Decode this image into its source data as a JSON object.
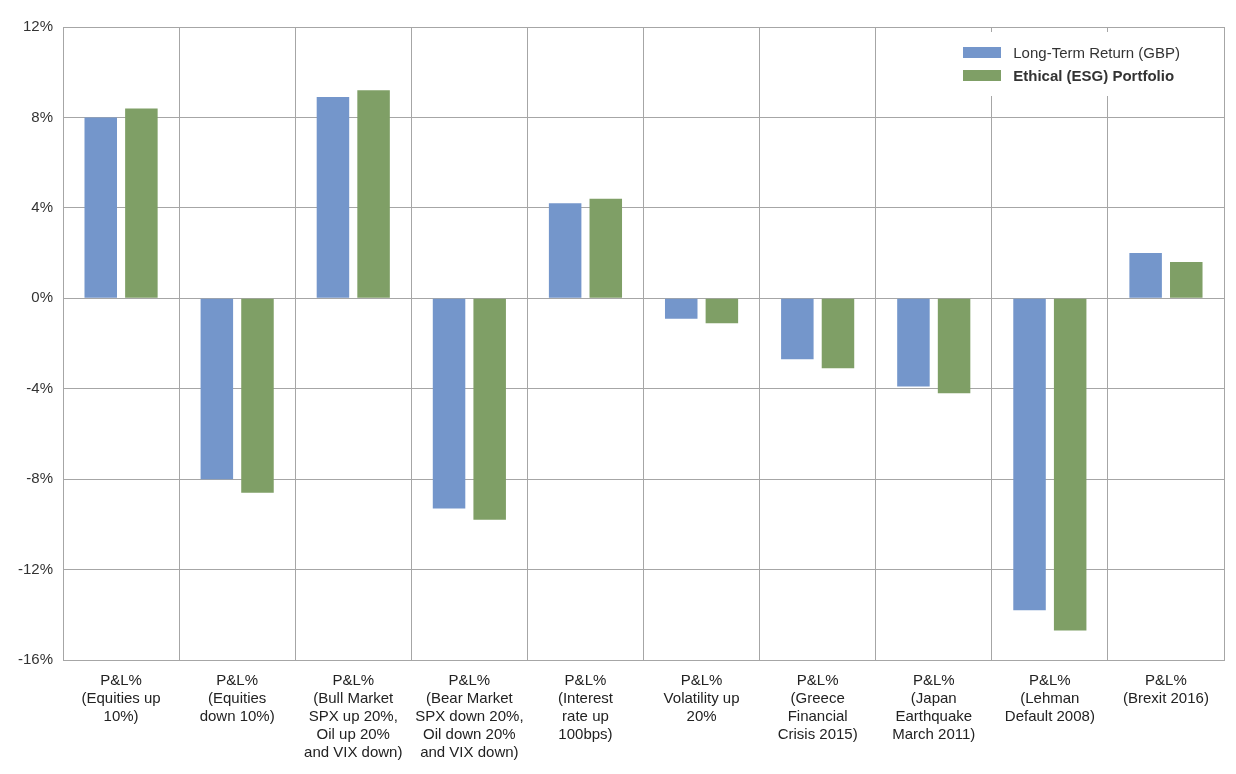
{
  "chart_data": {
    "type": "bar",
    "categories": [
      "P&L% (Equities up 10%)",
      "P&L% (Equities down 10%)",
      "P&L% (Bull Market SPX up 20%, Oil up 20% and VIX down)",
      "P&L% (Bear Market SPX down 20%, Oil down 20% and VIX down)",
      "P&L% (Interest rate up 100bps)",
      "P&L% Volatility up 20%",
      "P&L% (Greece Financial Crisis 2015)",
      "P&L% (Japan Earthquake March 2011)",
      "P&L% (Lehman Default 2008)",
      "P&L% (Brexit 2016)"
    ],
    "series": [
      {
        "name": "Long-Term Return (GBP)",
        "color": "#7496cb",
        "values": [
          8.0,
          -8.0,
          8.9,
          -9.3,
          4.2,
          -0.9,
          -2.7,
          -3.9,
          -13.8,
          2.0
        ]
      },
      {
        "name": "Ethical (ESG) Portfolio",
        "color": "#7f9f66",
        "values": [
          8.4,
          -8.6,
          9.2,
          -9.8,
          4.4,
          -1.1,
          -3.1,
          -4.2,
          -14.7,
          1.6
        ]
      }
    ],
    "ylim": [
      -16,
      12
    ],
    "yticks": [
      {
        "value": -16,
        "label": "-16%"
      },
      {
        "value": -12,
        "label": "-12%"
      },
      {
        "value": -8,
        "label": "-8%"
      },
      {
        "value": -4,
        "label": "-4%"
      },
      {
        "value": 0,
        "label": "0%"
      },
      {
        "value": 4,
        "label": "4%"
      },
      {
        "value": 8,
        "label": "8%"
      },
      {
        "value": 12,
        "label": "12%"
      }
    ],
    "grid": true,
    "legend": "top right"
  }
}
